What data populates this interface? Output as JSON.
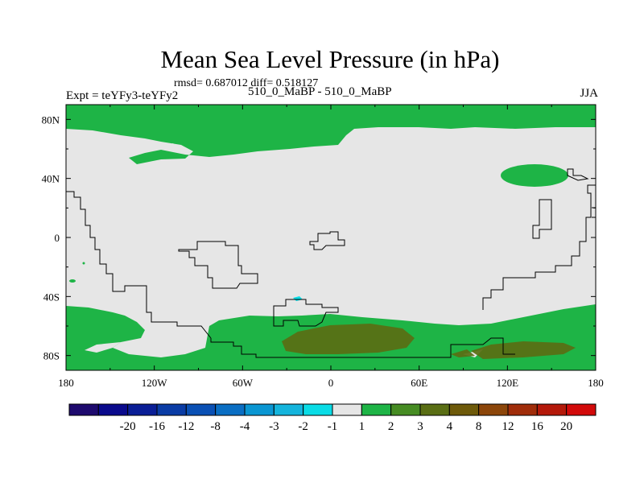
{
  "chart_data": {
    "type": "contour-map",
    "title": "Mean Sea Level Pressure (in hPa)",
    "stats": "rmsd= 0.687012 diff= 0.518127",
    "left_label": "Expt = teYFy3-teYFy2",
    "center_label": "510_0_MaBP - 510_0_MaBP",
    "right_label": "JJA",
    "x_ticks": [
      "180",
      "120W",
      "60W",
      "0",
      "60E",
      "120E",
      "180"
    ],
    "y_ticks": [
      "80N",
      "40N",
      "0",
      "40S",
      "80S"
    ],
    "lon_range": [
      -180,
      180
    ],
    "lat_range": [
      -90,
      90
    ],
    "colorbar": {
      "levels": [
        "-20",
        "-16",
        "-12",
        "-8",
        "-4",
        "-3",
        "-2",
        "-1",
        "1",
        "2",
        "3",
        "4",
        "8",
        "12",
        "16",
        "20"
      ],
      "colors": [
        "#1e0a6e",
        "#0a0a8c",
        "#0a1e96",
        "#0a3ca5",
        "#0a50b4",
        "#0a6ec3",
        "#0a96d2",
        "#14b4dc",
        "#0adce6",
        "#e6e6e6",
        "#1eb446",
        "#468c23",
        "#5a6e14",
        "#6e5a0a",
        "#8c460a",
        "#a02d0a",
        "#b4190a",
        "#d20a0a"
      ]
    }
  }
}
